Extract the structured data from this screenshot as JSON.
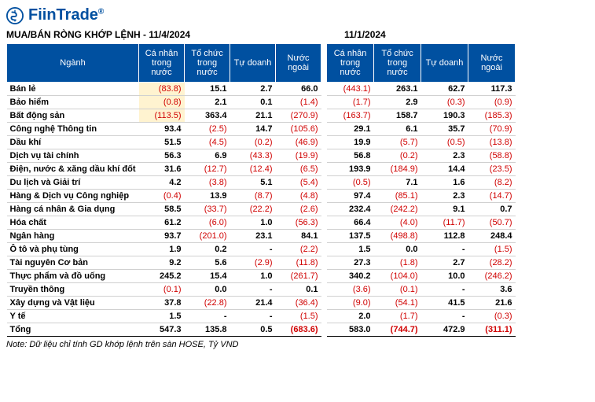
{
  "brand": {
    "name": "FiinTrade",
    "trademark": "®",
    "logo_color": "#0050a0"
  },
  "title_left": "MUA/BÁN RÒNG KHỚP LỆNH - 11/4/2024",
  "title_right": "11/1/2024",
  "columns_left": [
    "Ngành",
    "Cá nhân trong nước",
    "Tổ chức trong nước",
    "Tự doanh",
    "Nước ngoài"
  ],
  "columns_right": [
    "Cá nhân trong nước",
    "Tổ chức trong nước",
    "Tự doanh",
    "Nước ngoài"
  ],
  "colors": {
    "header_bg": "#0050a0",
    "header_fg": "#ffffff",
    "negative": "#d00000",
    "positive": "#000000",
    "highlight_bg": "#fff3d0",
    "row_border": "#d0d0d0"
  },
  "rows": [
    {
      "sector": "Bán lẻ",
      "l": [
        "(83.8)",
        "15.1",
        "2.7",
        "66.0"
      ],
      "r": [
        "(443.1)",
        "263.1",
        "62.7",
        "117.3"
      ],
      "hl_l": [
        0
      ]
    },
    {
      "sector": "Bảo hiểm",
      "l": [
        "(0.8)",
        "2.1",
        "0.1",
        "(1.4)"
      ],
      "r": [
        "(1.7)",
        "2.9",
        "(0.3)",
        "(0.9)"
      ],
      "hl_l": [
        0
      ]
    },
    {
      "sector": "Bất động sản",
      "l": [
        "(113.5)",
        "363.4",
        "21.1",
        "(270.9)"
      ],
      "r": [
        "(163.7)",
        "158.7",
        "190.3",
        "(185.3)"
      ],
      "hl_l": [
        0
      ]
    },
    {
      "sector": "Công nghệ Thông tin",
      "l": [
        "93.4",
        "(2.5)",
        "14.7",
        "(105.6)"
      ],
      "r": [
        "29.1",
        "6.1",
        "35.7",
        "(70.9)"
      ]
    },
    {
      "sector": "Dầu khí",
      "l": [
        "51.5",
        "(4.5)",
        "(0.2)",
        "(46.9)"
      ],
      "r": [
        "19.9",
        "(5.7)",
        "(0.5)",
        "(13.8)"
      ]
    },
    {
      "sector": "Dịch vụ tài chính",
      "l": [
        "56.3",
        "6.9",
        "(43.3)",
        "(19.9)"
      ],
      "r": [
        "56.8",
        "(0.2)",
        "2.3",
        "(58.8)"
      ]
    },
    {
      "sector": "Điện, nước & xăng dầu khí đốt",
      "l": [
        "31.6",
        "(12.7)",
        "(12.4)",
        "(6.5)"
      ],
      "r": [
        "193.9",
        "(184.9)",
        "14.4",
        "(23.5)"
      ]
    },
    {
      "sector": "Du lịch và Giải trí",
      "l": [
        "4.2",
        "(3.8)",
        "5.1",
        "(5.4)"
      ],
      "r": [
        "(0.5)",
        "7.1",
        "1.6",
        "(8.2)"
      ]
    },
    {
      "sector": "Hàng & Dịch vụ Công nghiệp",
      "l": [
        "(0.4)",
        "13.9",
        "(8.7)",
        "(4.8)"
      ],
      "r": [
        "97.4",
        "(85.1)",
        "2.3",
        "(14.7)"
      ]
    },
    {
      "sector": "Hàng cá nhân & Gia dụng",
      "l": [
        "58.5",
        "(33.7)",
        "(22.2)",
        "(2.6)"
      ],
      "r": [
        "232.4",
        "(242.2)",
        "9.1",
        "0.7"
      ]
    },
    {
      "sector": "Hóa chất",
      "l": [
        "61.2",
        "(6.0)",
        "1.0",
        "(56.3)"
      ],
      "r": [
        "66.4",
        "(4.0)",
        "(11.7)",
        "(50.7)"
      ]
    },
    {
      "sector": "Ngân hàng",
      "l": [
        "93.7",
        "(201.0)",
        "23.1",
        "84.1"
      ],
      "r": [
        "137.5",
        "(498.8)",
        "112.8",
        "248.4"
      ]
    },
    {
      "sector": "Ô tô và phụ tùng",
      "l": [
        "1.9",
        "0.2",
        "-",
        "(2.2)"
      ],
      "r": [
        "1.5",
        "0.0",
        "-",
        "(1.5)"
      ]
    },
    {
      "sector": "Tài nguyên Cơ bản",
      "l": [
        "9.2",
        "5.6",
        "(2.9)",
        "(11.8)"
      ],
      "r": [
        "27.3",
        "(1.8)",
        "2.7",
        "(28.2)"
      ]
    },
    {
      "sector": "Thực phẩm và đồ uống",
      "l": [
        "245.2",
        "15.4",
        "1.0",
        "(261.7)"
      ],
      "r": [
        "340.2",
        "(104.0)",
        "10.0",
        "(246.2)"
      ]
    },
    {
      "sector": "Truyền thông",
      "l": [
        "(0.1)",
        "0.0",
        "-",
        "0.1"
      ],
      "r": [
        "(3.6)",
        "(0.1)",
        "-",
        "3.6"
      ]
    },
    {
      "sector": "Xây dựng và Vật liệu",
      "l": [
        "37.8",
        "(22.8)",
        "21.4",
        "(36.4)"
      ],
      "r": [
        "(9.0)",
        "(54.1)",
        "41.5",
        "21.6"
      ]
    },
    {
      "sector": "Y tế",
      "l": [
        "1.5",
        "-",
        "-",
        "(1.5)"
      ],
      "r": [
        "2.0",
        "(1.7)",
        "-",
        "(0.3)"
      ]
    }
  ],
  "total": {
    "label": "Tổng",
    "l": [
      "547.3",
      "135.8",
      "0.5",
      "(683.6)"
    ],
    "r": [
      "583.0",
      "(744.7)",
      "472.9",
      "(311.1)"
    ]
  },
  "note": "Note: Dữ liệu chỉ tính GD khớp lệnh trên sàn HOSE, Tỷ VND"
}
